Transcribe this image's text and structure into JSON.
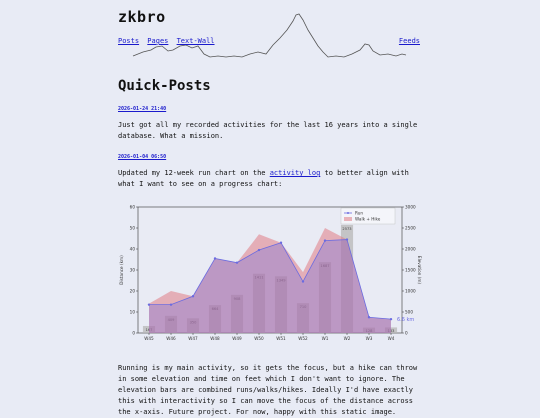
{
  "site": {
    "title": "zkbro"
  },
  "nav": {
    "posts": "Posts",
    "pages": "Pages",
    "text_wall": "Text-Wall",
    "feeds": "Feeds"
  },
  "page_title": "Quick-Posts",
  "posts": [
    {
      "date": "2026-01-24 21:40",
      "body": "Just got all my recorded activities for the last 16 years into a single database. What a mission."
    },
    {
      "date": "2026-01-04 06:50",
      "body_before": "Updated my 12-week run chart on the ",
      "link": "activity log",
      "body_after": " to better align with what I want to see on a progress chart:"
    }
  ],
  "footer_text": "Running is my main activity, so it gets the focus, but a hike can throw in some elevation and time on feet which I don't want to ignore. The elevation bars are combined runs/walks/hikes. Ideally I'd have exactly this with interactivity so I can move the focus of the distance across the x-axis. Future project. For now, happy with this static image.",
  "colors": {
    "link": "#1a1acc",
    "run": "#6b6be0",
    "walk": "#e07b85",
    "bars": "#b7b7b7",
    "background": "#e8ebf5"
  },
  "chart_data": {
    "type": "area",
    "categories": [
      "W45",
      "W46",
      "W47",
      "W48",
      "W49",
      "W50",
      "W51",
      "W52",
      "W1",
      "W2",
      "W3",
      "W4"
    ],
    "series": [
      {
        "name": "Run",
        "values": [
          13.5,
          13.5,
          17.5,
          35.5,
          33.5,
          39.5,
          43,
          24.5,
          44,
          44.5,
          7.5,
          6.6
        ]
      },
      {
        "name": "Walk + Hike",
        "values": [
          14,
          20,
          17.5,
          35.5,
          33.5,
          47,
          43,
          29,
          50,
          44.5,
          7.5,
          6.6
        ]
      }
    ],
    "bars": {
      "values": [
        167,
        409,
        350,
        664,
        908,
        1411,
        1349,
        710,
        1687,
        2573,
        128,
        133
      ]
    },
    "ylabel": "Distance (km)",
    "y2label": "Elevation (m)",
    "ylim": [
      0,
      60
    ],
    "y2lim": [
      0,
      3000
    ],
    "yticks": [
      0,
      10,
      20,
      30,
      40,
      50,
      60
    ],
    "y2ticks": [
      0,
      500,
      1000,
      1500,
      2000,
      2500,
      3000
    ],
    "last_label": "6.6 km",
    "legend": "top-right",
    "grid": false
  }
}
